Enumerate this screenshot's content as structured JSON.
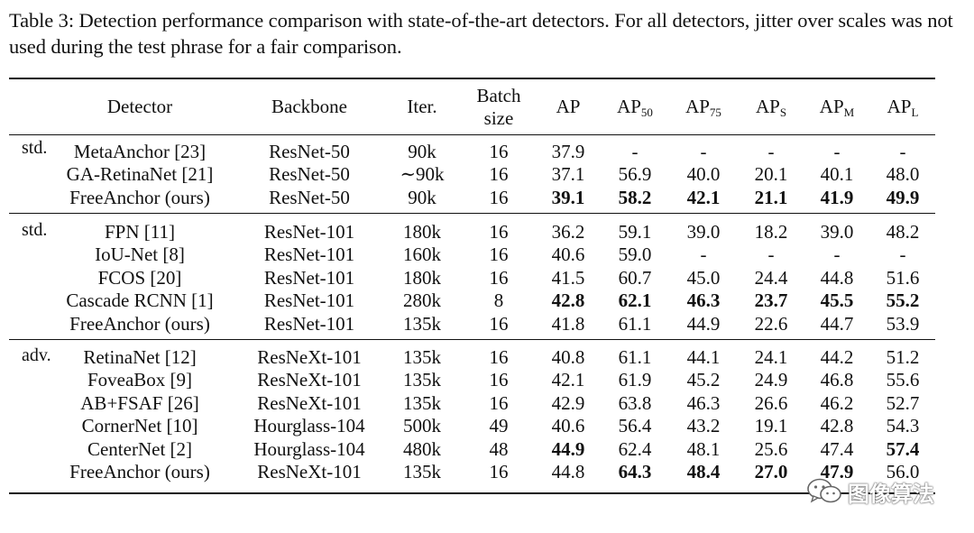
{
  "caption": "Table 3: Detection performance comparison with state-of-the-art detectors. For all detectors, jitter over scales was not used during the test phrase for a fair comparison.",
  "header": {
    "detector": "Detector",
    "backbone": "Backbone",
    "iter": "Iter.",
    "batch_line1": "Batch",
    "batch_line2": "size",
    "ap": "AP",
    "ap50_base": "AP",
    "ap50_sub": "50",
    "ap75_base": "AP",
    "ap75_sub": "75",
    "aps_base": "AP",
    "aps_sub": "S",
    "apm_base": "AP",
    "apm_sub": "M",
    "apl_base": "AP",
    "apl_sub": "L"
  },
  "groups": [
    {
      "label": "std.",
      "rows": [
        {
          "detector": "MetaAnchor [23]",
          "backbone": "ResNet-50",
          "iter": "90k",
          "batch": "16",
          "ap": "37.9",
          "ap50": "-",
          "ap75": "-",
          "aps": "-",
          "apm": "-",
          "apl": "-"
        },
        {
          "detector": "GA-RetinaNet [21]",
          "backbone": "ResNet-50",
          "iter": "∼90k",
          "batch": "16",
          "ap": "37.1",
          "ap50": "56.9",
          "ap75": "40.0",
          "aps": "20.1",
          "apm": "40.1",
          "apl": "48.0"
        },
        {
          "detector": "FreeAnchor (ours)",
          "backbone": "ResNet-50",
          "iter": "90k",
          "batch": "16",
          "ap": "39.1",
          "ap50": "58.2",
          "ap75": "42.1",
          "aps": "21.1",
          "apm": "41.9",
          "apl": "49.9"
        }
      ]
    },
    {
      "label": "std.",
      "rows": [
        {
          "detector": "FPN [11]",
          "backbone": "ResNet-101",
          "iter": "180k",
          "batch": "16",
          "ap": "36.2",
          "ap50": "59.1",
          "ap75": "39.0",
          "aps": "18.2",
          "apm": "39.0",
          "apl": "48.2"
        },
        {
          "detector": "IoU-Net [8]",
          "backbone": "ResNet-101",
          "iter": "160k",
          "batch": "16",
          "ap": "40.6",
          "ap50": "59.0",
          "ap75": "-",
          "aps": "-",
          "apm": "-",
          "apl": "-"
        },
        {
          "detector": "FCOS [20]",
          "backbone": "ResNet-101",
          "iter": "180k",
          "batch": "16",
          "ap": "41.5",
          "ap50": "60.7",
          "ap75": "45.0",
          "aps": "24.4",
          "apm": "44.8",
          "apl": "51.6"
        },
        {
          "detector": "Cascade RCNN [1]",
          "backbone": "ResNet-101",
          "iter": "280k",
          "batch": "8",
          "ap": "42.8",
          "ap50": "62.1",
          "ap75": "46.3",
          "aps": "23.7",
          "apm": "45.5",
          "apl": "55.2"
        },
        {
          "detector": "FreeAnchor (ours)",
          "backbone": "ResNet-101",
          "iter": "135k",
          "batch": "16",
          "ap": "41.8",
          "ap50": "61.1",
          "ap75": "44.9",
          "aps": "22.6",
          "apm": "44.7",
          "apl": "53.9"
        }
      ]
    },
    {
      "label": "adv.",
      "rows": [
        {
          "detector": "RetinaNet [12]",
          "backbone": "ResNeXt-101",
          "iter": "135k",
          "batch": "16",
          "ap": "40.8",
          "ap50": "61.1",
          "ap75": "44.1",
          "aps": "24.1",
          "apm": "44.2",
          "apl": "51.2"
        },
        {
          "detector": "FoveaBox [9]",
          "backbone": "ResNeXt-101",
          "iter": "135k",
          "batch": "16",
          "ap": "42.1",
          "ap50": "61.9",
          "ap75": "45.2",
          "aps": "24.9",
          "apm": "46.8",
          "apl": "55.6"
        },
        {
          "detector": "AB+FSAF [26]",
          "backbone": "ResNeXt-101",
          "iter": "135k",
          "batch": "16",
          "ap": "42.9",
          "ap50": "63.8",
          "ap75": "46.3",
          "aps": "26.6",
          "apm": "46.2",
          "apl": "52.7"
        },
        {
          "detector": "CornerNet [10]",
          "backbone": "Hourglass-104",
          "iter": "500k",
          "batch": "49",
          "ap": "40.6",
          "ap50": "56.4",
          "ap75": "43.2",
          "aps": "19.1",
          "apm": "42.8",
          "apl": "54.3"
        },
        {
          "detector": "CenterNet [2]",
          "backbone": "Hourglass-104",
          "iter": "480k",
          "batch": "48",
          "ap": "44.9",
          "ap50": "62.4",
          "ap75": "48.1",
          "aps": "25.6",
          "apm": "47.4",
          "apl": "57.4"
        },
        {
          "detector": "FreeAnchor (ours)",
          "backbone": "ResNeXt-101",
          "iter": "135k",
          "batch": "16",
          "ap": "44.8",
          "ap50": "64.3",
          "ap75": "48.4",
          "aps": "27.0",
          "apm": "47.9",
          "apl": "56.0"
        }
      ]
    }
  ],
  "bold_cells": {
    "g0r2": [
      "ap",
      "ap50",
      "ap75",
      "aps",
      "apm",
      "apl"
    ],
    "g1r3": [
      "ap",
      "ap50",
      "ap75",
      "aps",
      "apm",
      "apl"
    ],
    "g2r4": [
      "ap",
      "apl"
    ],
    "g2r5": [
      "ap50",
      "ap75",
      "aps",
      "apm"
    ]
  },
  "watermark": {
    "icon": "wechat-icon",
    "text": "图像算法"
  }
}
